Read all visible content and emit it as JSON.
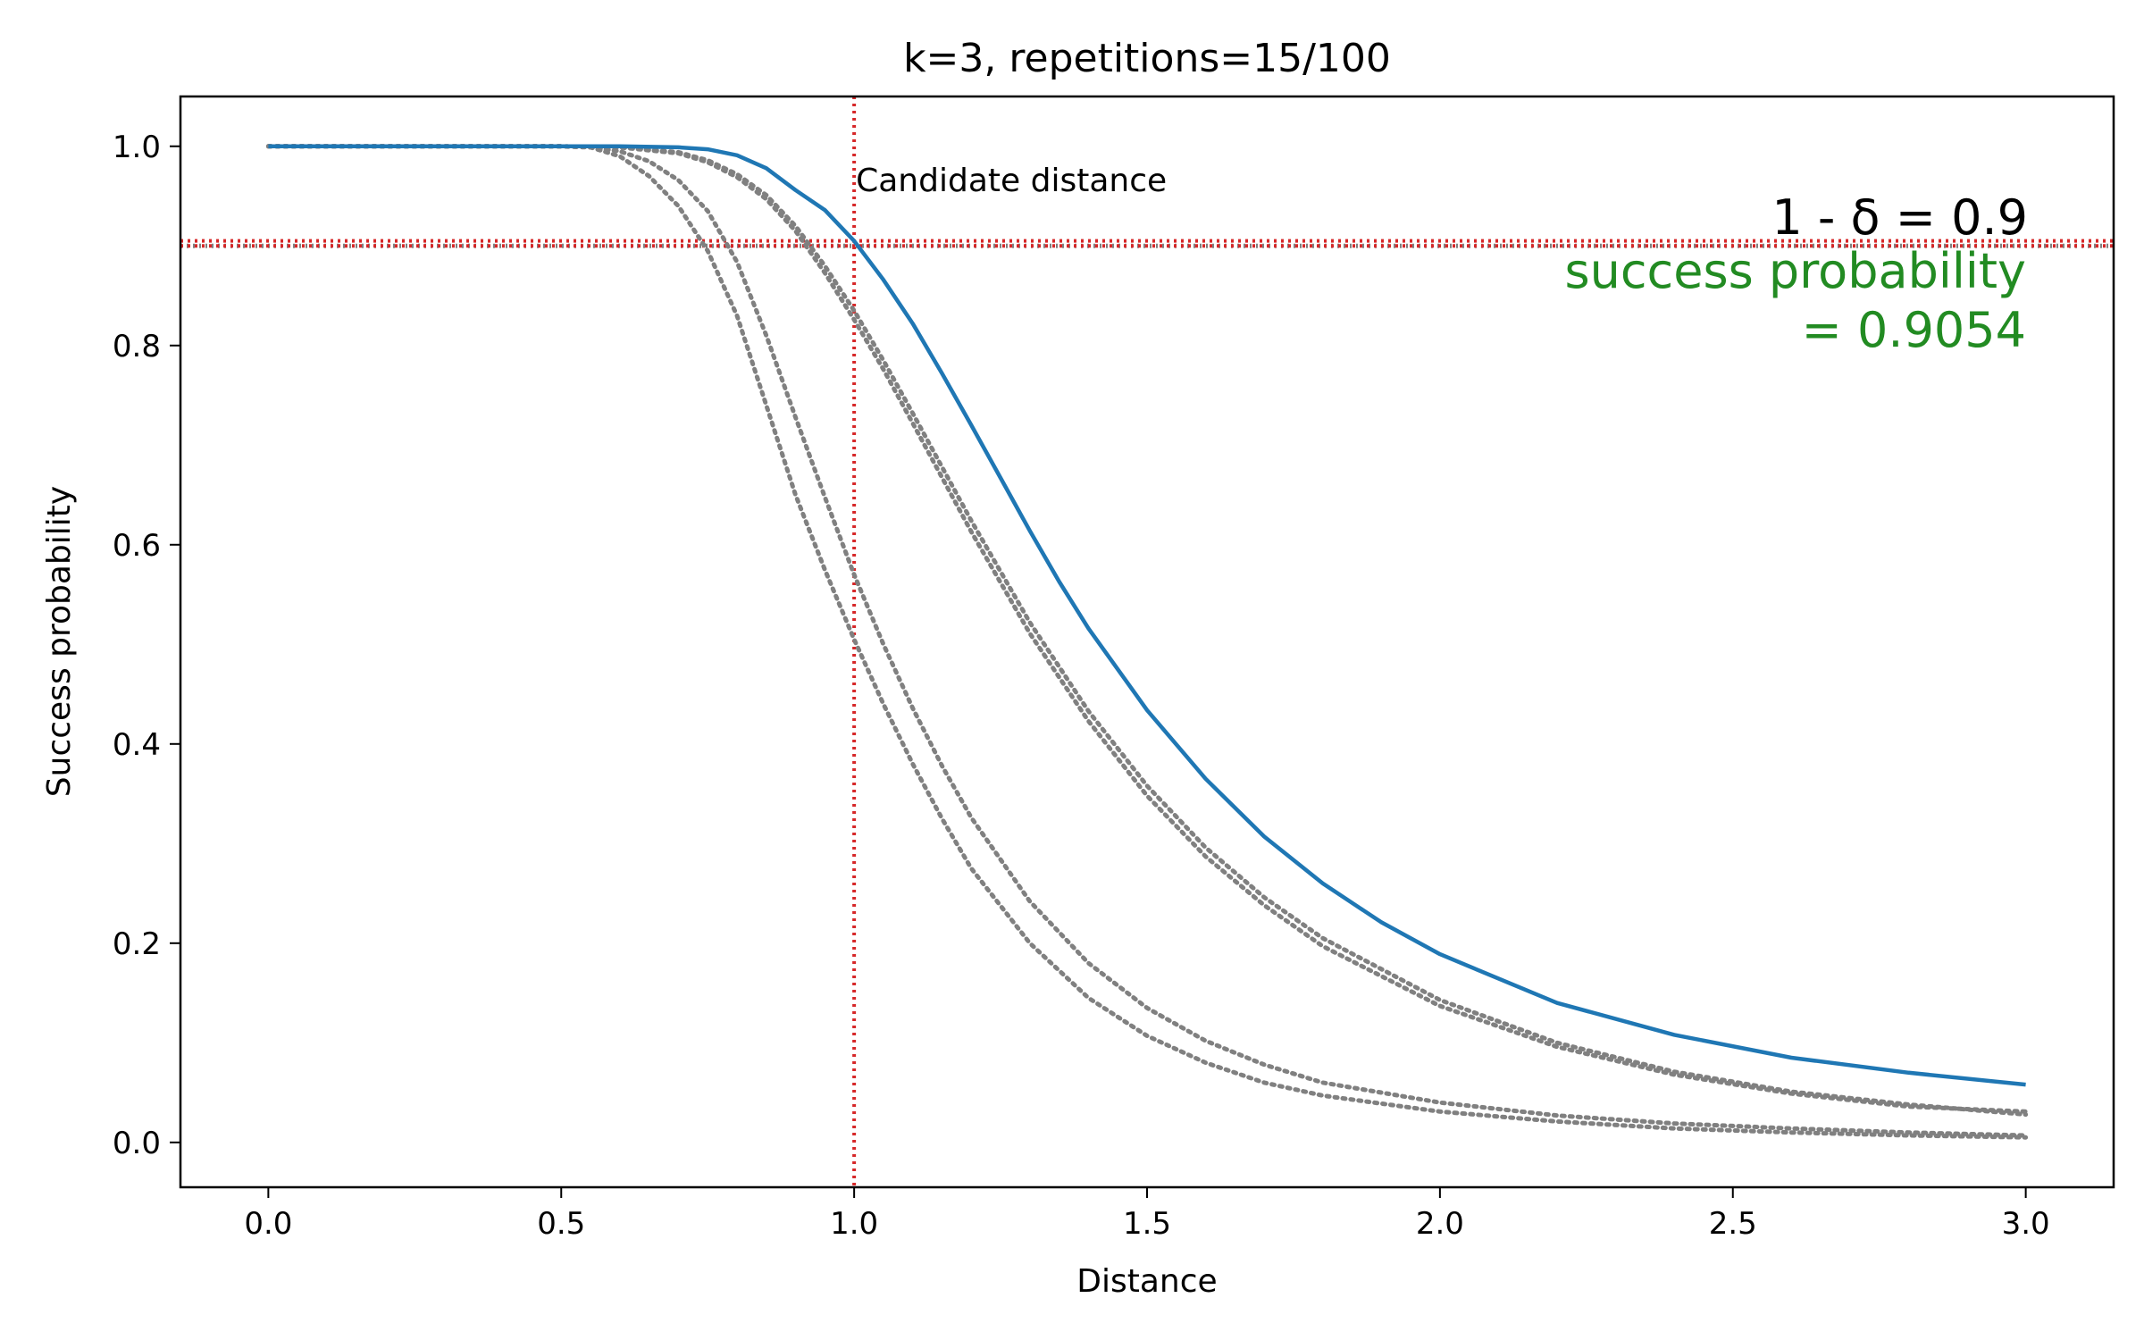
{
  "chart_data": {
    "type": "line",
    "title": "k=3, repetitions=15/100",
    "xlabel": "Distance",
    "ylabel": "Success probability",
    "xlim": [
      -0.15,
      3.15
    ],
    "ylim": [
      -0.045,
      1.05
    ],
    "xticks": [
      0.0,
      0.5,
      1.0,
      1.5,
      2.0,
      2.5,
      3.0
    ],
    "xtick_labels": [
      "0.0",
      "0.5",
      "1.0",
      "1.5",
      "2.0",
      "2.5",
      "3.0"
    ],
    "yticks": [
      0.0,
      0.2,
      0.4,
      0.6,
      0.8,
      1.0
    ],
    "ytick_labels": [
      "0.0",
      "0.2",
      "0.4",
      "0.6",
      "0.8",
      "1.0"
    ],
    "grid": false,
    "series": [
      {
        "role": "main",
        "color": "#1f77b4",
        "style": "solid",
        "x": [
          0.0,
          0.6,
          0.7,
          0.75,
          0.8,
          0.85,
          0.9,
          0.95,
          1.0,
          1.05,
          1.1,
          1.15,
          1.2,
          1.25,
          1.3,
          1.35,
          1.4,
          1.5,
          1.6,
          1.7,
          1.8,
          1.9,
          2.0,
          2.2,
          2.4,
          2.6,
          2.8,
          3.0
        ],
        "y": [
          1.0,
          1.0,
          0.999,
          0.997,
          0.991,
          0.978,
          0.956,
          0.936,
          0.905,
          0.866,
          0.822,
          0.772,
          0.72,
          0.667,
          0.614,
          0.563,
          0.516,
          0.434,
          0.365,
          0.307,
          0.26,
          0.221,
          0.189,
          0.14,
          0.108,
          0.085,
          0.07,
          0.058
        ]
      },
      {
        "role": "reference",
        "color": "#808080",
        "style": "dotted",
        "x": [
          0.0,
          0.5,
          0.6,
          0.7,
          0.75,
          0.8,
          0.85,
          0.9,
          0.95,
          1.0,
          1.05,
          1.1,
          1.2,
          1.3,
          1.4,
          1.5,
          1.6,
          1.7,
          1.8,
          2.0,
          2.2,
          2.4,
          2.6,
          2.8,
          3.0
        ],
        "y": [
          1.0,
          1.0,
          0.999,
          0.994,
          0.986,
          0.972,
          0.951,
          0.92,
          0.88,
          0.835,
          0.785,
          0.732,
          0.624,
          0.522,
          0.433,
          0.358,
          0.296,
          0.246,
          0.205,
          0.143,
          0.1,
          0.071,
          0.051,
          0.038,
          0.028
        ]
      },
      {
        "role": "reference",
        "color": "#808080",
        "style": "dotted",
        "x": [
          0.0,
          0.5,
          0.6,
          0.7,
          0.75,
          0.8,
          0.85,
          0.9,
          0.95,
          1.0,
          1.05,
          1.1,
          1.2,
          1.3,
          1.4,
          1.5,
          1.6,
          1.7,
          1.8,
          2.0,
          2.2,
          2.4,
          2.6,
          2.8,
          3.0
        ],
        "y": [
          1.0,
          1.0,
          0.999,
          0.993,
          0.984,
          0.969,
          0.947,
          0.915,
          0.873,
          0.826,
          0.776,
          0.722,
          0.613,
          0.511,
          0.423,
          0.348,
          0.287,
          0.238,
          0.197,
          0.137,
          0.096,
          0.068,
          0.049,
          0.036,
          0.031
        ]
      },
      {
        "role": "reference",
        "color": "#808080",
        "style": "dotted",
        "x": [
          0.0,
          0.5,
          0.55,
          0.6,
          0.65,
          0.7,
          0.75,
          0.8,
          0.85,
          0.9,
          0.95,
          1.0,
          1.05,
          1.1,
          1.15,
          1.2,
          1.3,
          1.4,
          1.5,
          1.6,
          1.7,
          1.8,
          2.0,
          2.2,
          2.4,
          2.6,
          2.8,
          3.0
        ],
        "y": [
          1.0,
          1.0,
          0.999,
          0.99,
          0.97,
          0.94,
          0.895,
          0.83,
          0.74,
          0.65,
          0.575,
          0.505,
          0.44,
          0.38,
          0.325,
          0.275,
          0.2,
          0.145,
          0.107,
          0.08,
          0.06,
          0.047,
          0.031,
          0.021,
          0.014,
          0.01,
          0.007,
          0.005
        ]
      },
      {
        "role": "reference",
        "color": "#808080",
        "style": "dotted",
        "x": [
          0.0,
          0.5,
          0.55,
          0.6,
          0.65,
          0.7,
          0.75,
          0.8,
          0.85,
          0.9,
          0.95,
          1.0,
          1.05,
          1.1,
          1.15,
          1.2,
          1.3,
          1.4,
          1.5,
          1.6,
          1.7,
          1.8,
          2.0,
          2.2,
          2.4,
          2.6,
          2.8,
          3.0
        ],
        "y": [
          1.0,
          1.0,
          0.999,
          0.995,
          0.985,
          0.966,
          0.935,
          0.884,
          0.81,
          0.728,
          0.648,
          0.57,
          0.5,
          0.436,
          0.378,
          0.326,
          0.242,
          0.18,
          0.135,
          0.102,
          0.078,
          0.06,
          0.04,
          0.027,
          0.019,
          0.014,
          0.01,
          0.007
        ]
      }
    ],
    "reference_lines": {
      "vertical_x": 1.0,
      "horizontal_y": [
        0.9,
        0.905
      ],
      "color": "#d62728",
      "grey_horizontal_y": 0.9,
      "grey_color": "#808080"
    },
    "annotations": {
      "candidate": {
        "text": "Candidate distance",
        "x": 1.0,
        "y": 0.955
      },
      "delta": {
        "text": "1 - δ = 0.9",
        "color": "#000000"
      },
      "success_line1": {
        "text": "success probability",
        "color": "#228b22"
      },
      "success_line2": {
        "text": "= 0.9054",
        "color": "#228b22"
      }
    }
  }
}
